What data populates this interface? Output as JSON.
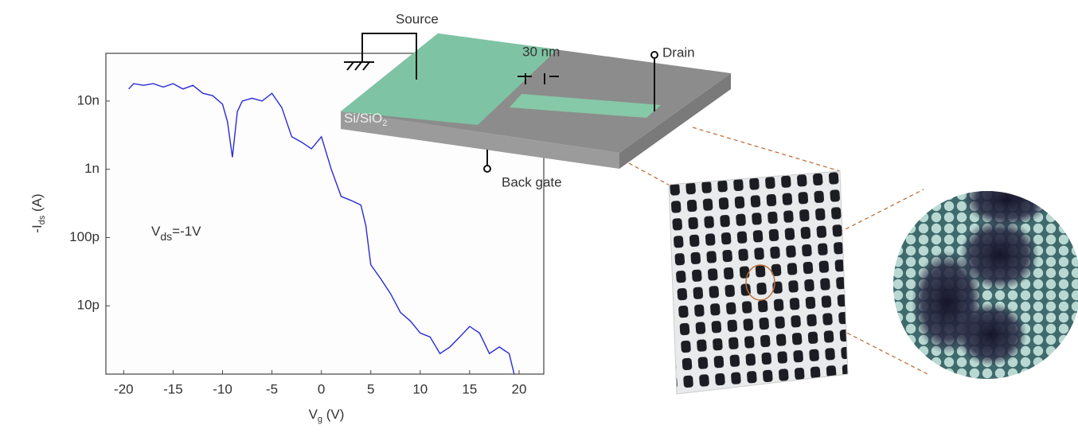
{
  "chart_data": {
    "type": "line",
    "xlabel": [
      "V",
      "g",
      " (V)"
    ],
    "ylabel": [
      "-I",
      "ds",
      " (A)"
    ],
    "annotation": [
      "V",
      "ds",
      "=-1V"
    ],
    "color": "#2a2ad8",
    "ylog": true,
    "xlim": [
      -21.8,
      22.5
    ],
    "ylim": [
      1e-12,
      5e-08
    ],
    "xticks": [
      -20,
      -15,
      -10,
      -5,
      0,
      5,
      10,
      15,
      20
    ],
    "yticks": [
      {
        "value": 1e-11,
        "label": "10p"
      },
      {
        "value": 1e-10,
        "label": "100p"
      },
      {
        "value": 1e-09,
        "label": "1n"
      },
      {
        "value": 1e-08,
        "label": "10n"
      }
    ],
    "x": [
      -19.5,
      -19,
      -18,
      -17,
      -16,
      -15,
      -14,
      -13,
      -12,
      -11,
      -10,
      -9.5,
      -9,
      -8.5,
      -8,
      -7,
      -6,
      -5,
      -4,
      -3,
      -2,
      -1,
      0,
      1,
      2,
      3,
      4,
      4.5,
      5,
      6,
      7,
      8,
      9,
      10,
      11,
      12,
      13,
      14,
      15,
      16,
      17,
      18,
      19,
      19.5
    ],
    "values": [
      1.5e-08,
      1.8e-08,
      1.7e-08,
      1.8e-08,
      1.6e-08,
      1.8e-08,
      1.5e-08,
      1.7e-08,
      1.3e-08,
      1.2e-08,
      9e-09,
      5e-09,
      1.5e-09,
      7e-09,
      1e-08,
      1.1e-08,
      1e-08,
      1.3e-08,
      8e-09,
      3e-09,
      2.5e-09,
      2e-09,
      3e-09,
      1e-09,
      4e-10,
      3.5e-10,
      3e-10,
      1.5e-10,
      4e-11,
      2.5e-11,
      1.5e-11,
      8e-12,
      6e-12,
      4e-12,
      3.5e-12,
      2e-12,
      2.5e-12,
      3.5e-12,
      5e-12,
      4e-12,
      2e-12,
      2.5e-12,
      2e-12,
      1e-12
    ]
  },
  "diagram": {
    "labels": {
      "source": "Source",
      "gap": "30 nm",
      "drain": "Drain",
      "substrate": [
        "Si/SiO",
        "2"
      ],
      "gate": "Back gate"
    }
  }
}
